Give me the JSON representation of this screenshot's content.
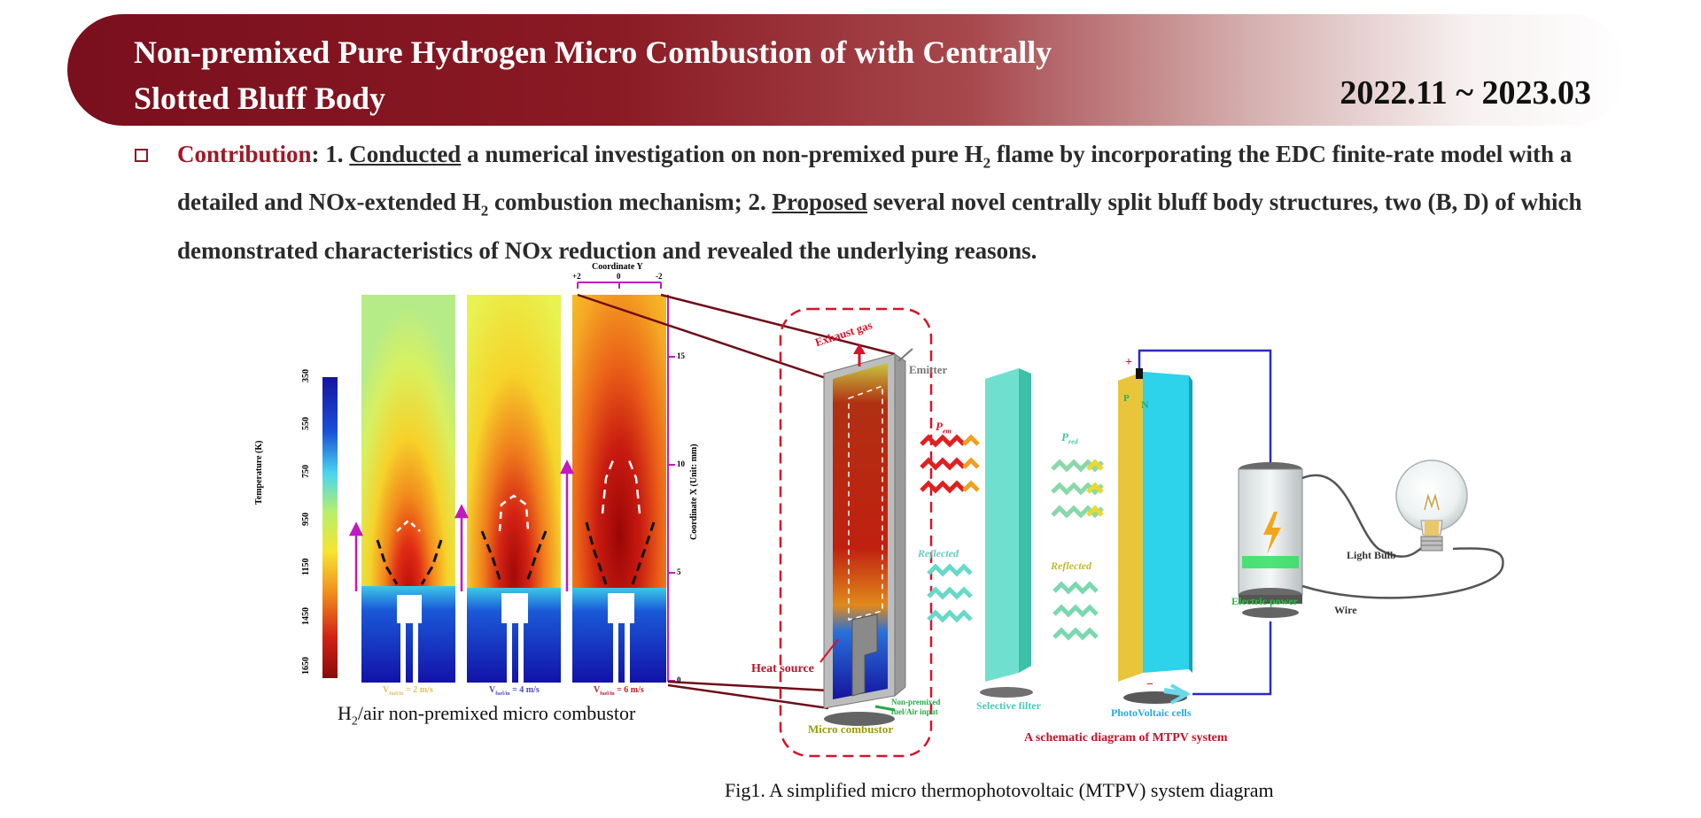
{
  "header": {
    "title_line1": "Non-premixed Pure Hydrogen Micro Combustion of with Centrally",
    "title_line2": "Slotted Bluff Body",
    "date": "2022.11 ~ 2023.03"
  },
  "contribution": {
    "label": "Contribution",
    "p1": ": 1. ",
    "conducted": "Conducted",
    "p2": " a numerical investigation on non-premixed pure H",
    "sub2": "2",
    "p3": " flame by incorporating the EDC finite-rate model with a detailed and NOx-extended H",
    "sub2b": "2",
    "p4": " combustion mechanism; 2. ",
    "proposed": "Proposed",
    "p5": " several novel centrally split bluff body structures, two (B, D) of which demonstrated characteristics of NOx reduction and revealed the underlying reasons."
  },
  "figure": {
    "colorbar": {
      "title": "Temperature (K)",
      "ticks": [
        "350",
        "550",
        "750",
        "950",
        "1150",
        "1450",
        "1650"
      ]
    },
    "coord_y": {
      "title": "Coordinate Y",
      "ticks": [
        "+2",
        "0",
        "-2"
      ]
    },
    "coord_x": {
      "title": "Coordinate X (Unit: mm)",
      "ticks": [
        "15",
        "10",
        "5",
        "0"
      ]
    },
    "velocity_labels": {
      "v1_main": "V",
      "v1_sub": "fuel/in",
      "v1_val": " = 2 m/s",
      "v2_main": "V",
      "v2_sub": "fuel/in",
      "v2_val": " = 4 m/s",
      "v3_main": "V",
      "v3_sub": "fuel/in",
      "v3_val": " = 6 m/s"
    },
    "combustor_caption_main": "H",
    "combustor_caption_sub": "2",
    "combustor_caption_rest": "/air non-premixed micro combustor",
    "labels": {
      "exhaust_gas": "Exhaust gas",
      "emitter": "Emitter",
      "heat_source": "Heat source",
      "fuel_input": "Non-premixed fuel/Air input",
      "micro_combustor": "Micro combustor",
      "p_em": "P",
      "p_em_sub": "em",
      "p_red": "P",
      "p_red_sub": "red",
      "reflected_1": "Reflected",
      "reflected_2": "Reflected",
      "selective_filter": "Selective filter",
      "pv_cells": "PhotoVoltaic cells",
      "p_label": "P",
      "n_label": "N",
      "plus": "+",
      "minus": "−",
      "electric_power": "Electric power",
      "light_bulb": "Light Bulb",
      "wire": "Wire",
      "schematic_title": "A schematic diagram of MTPV system"
    },
    "caption": "Fig1. A simplified micro thermophotovoltaic (MTPV) system diagram"
  },
  "colors": {
    "banner": "#7a0f1d",
    "accent_red": "#a11725",
    "filter": "#6fe0cf",
    "pv_blue": "#2cd3ea",
    "pv_yellow": "#e8c53a",
    "wire": "#2b2bc4"
  }
}
